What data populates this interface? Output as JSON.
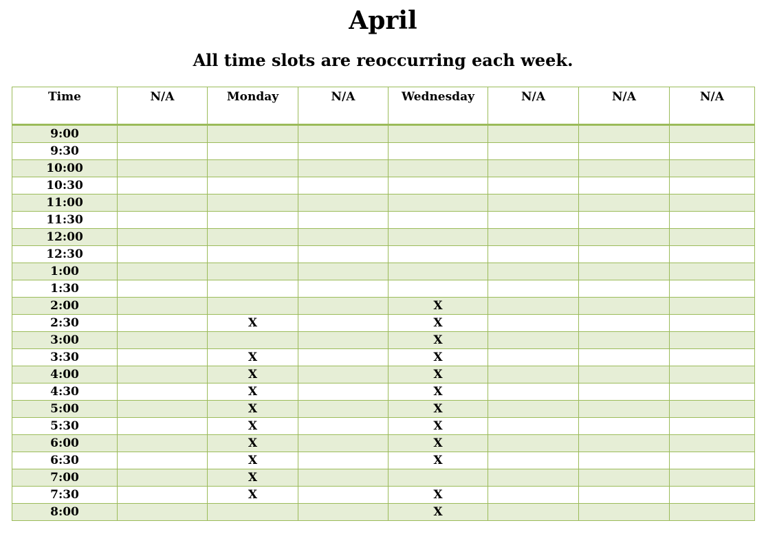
{
  "title": "April",
  "subtitle": "All time slots are reoccurring each week.",
  "colors": {
    "border": "#9bbb59",
    "band": "#e6eed6"
  },
  "columns": [
    "Time",
    "N/A",
    "Monday",
    "N/A",
    "Wednesday",
    "N/A",
    "N/A",
    "N/A"
  ],
  "rows": [
    [
      "9:00",
      "",
      "",
      "",
      "",
      "",
      "",
      ""
    ],
    [
      "9:30",
      "",
      "",
      "",
      "",
      "",
      "",
      ""
    ],
    [
      "10:00",
      "",
      "",
      "",
      "",
      "",
      "",
      ""
    ],
    [
      "10:30",
      "",
      "",
      "",
      "",
      "",
      "",
      ""
    ],
    [
      "11:00",
      "",
      "",
      "",
      "",
      "",
      "",
      ""
    ],
    [
      "11:30",
      "",
      "",
      "",
      "",
      "",
      "",
      ""
    ],
    [
      "12:00",
      "",
      "",
      "",
      "",
      "",
      "",
      ""
    ],
    [
      "12:30",
      "",
      "",
      "",
      "",
      "",
      "",
      ""
    ],
    [
      "1:00",
      "",
      "",
      "",
      "",
      "",
      "",
      ""
    ],
    [
      "1:30",
      "",
      "",
      "",
      "",
      "",
      "",
      ""
    ],
    [
      "2:00",
      "",
      "",
      "",
      "X",
      "",
      "",
      ""
    ],
    [
      "2:30",
      "",
      "X",
      "",
      "X",
      "",
      "",
      ""
    ],
    [
      "3:00",
      "",
      "",
      "",
      "X",
      "",
      "",
      ""
    ],
    [
      "3:30",
      "",
      "X",
      "",
      "X",
      "",
      "",
      ""
    ],
    [
      "4:00",
      "",
      "X",
      "",
      "X",
      "",
      "",
      ""
    ],
    [
      "4:30",
      "",
      "X",
      "",
      "X",
      "",
      "",
      ""
    ],
    [
      "5:00",
      "",
      "X",
      "",
      "X",
      "",
      "",
      ""
    ],
    [
      "5:30",
      "",
      "X",
      "",
      "X",
      "",
      "",
      ""
    ],
    [
      "6:00",
      "",
      "X",
      "",
      "X",
      "",
      "",
      ""
    ],
    [
      "6:30",
      "",
      "X",
      "",
      "X",
      "",
      "",
      ""
    ],
    [
      "7:00",
      "",
      "X",
      "",
      "",
      "",
      "",
      ""
    ],
    [
      "7:30",
      "",
      "X",
      "",
      "X",
      "",
      "",
      ""
    ],
    [
      "8:00",
      "",
      "",
      "",
      "X",
      "",
      "",
      ""
    ]
  ]
}
